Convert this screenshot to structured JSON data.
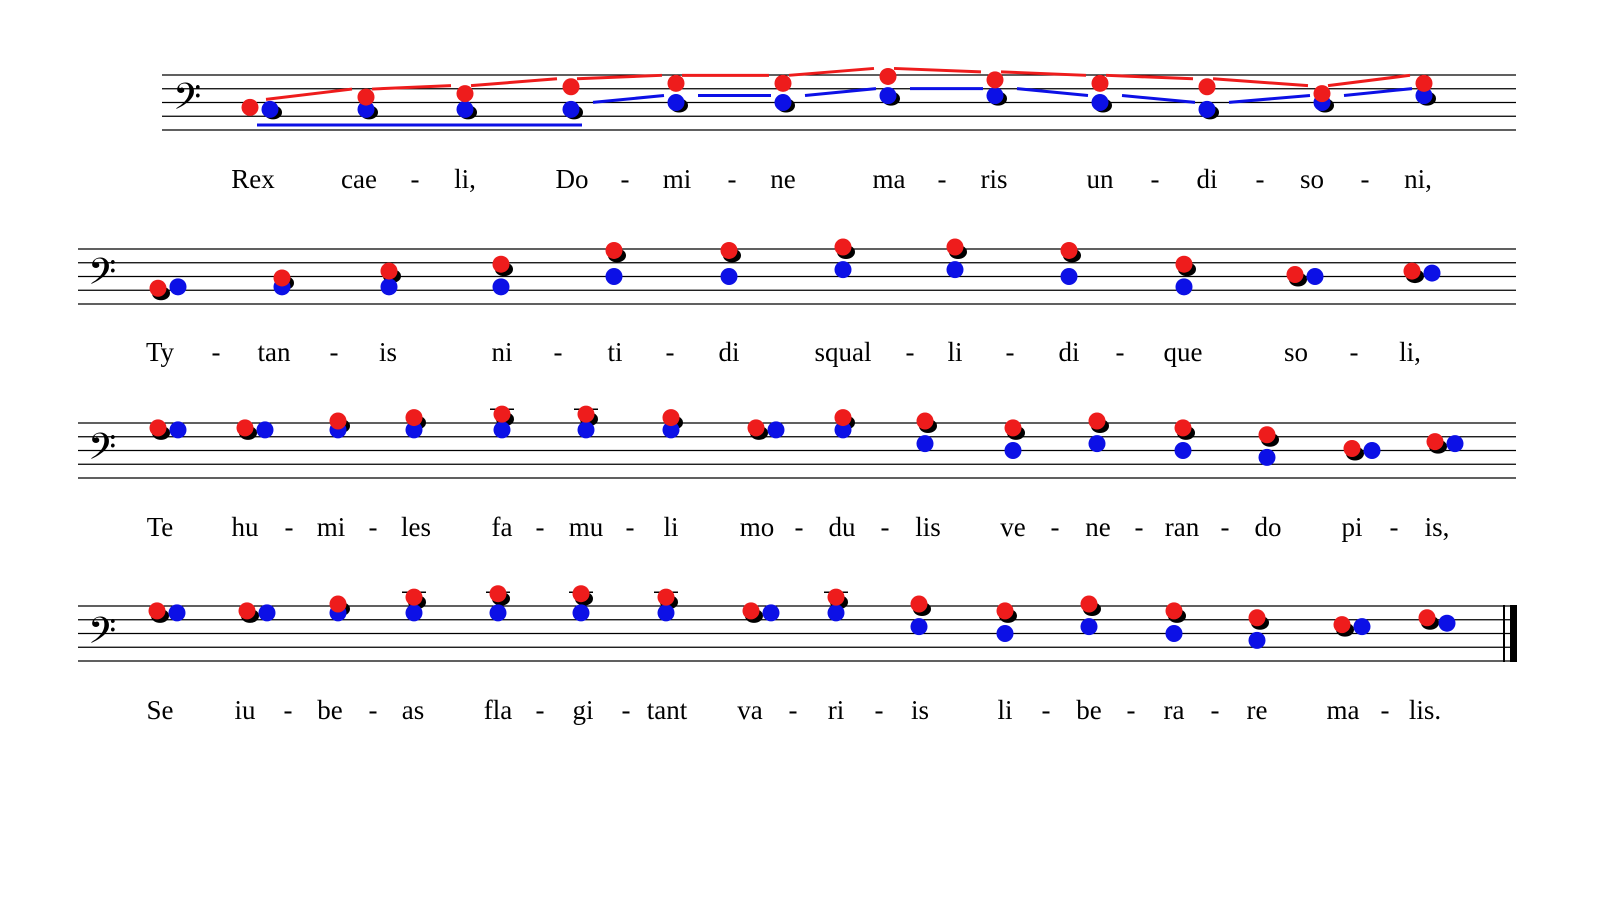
{
  "colors": {
    "red": "#ee1c1c",
    "blue": "#0c10e6",
    "black": "#000000",
    "staff": "#000000"
  },
  "clef_glyph": "𝄢",
  "clef_name": "bass-clef",
  "systems": [
    {
      "lyrics": [
        "Rex",
        "cae",
        "-",
        "li,",
        "Do",
        "-",
        "mi",
        "-",
        "ne",
        "ma",
        "-",
        "ris",
        "un",
        "-",
        "di",
        "-",
        "so",
        "-",
        "ni,"
      ],
      "red": [
        5,
        3.5,
        3,
        2,
        1.5,
        1.5,
        0.5,
        1,
        1.5,
        2,
        3,
        1.5
      ],
      "blue": [
        5,
        5,
        5,
        5,
        4,
        4,
        3,
        3,
        4,
        5,
        4,
        3
      ],
      "black_on": "blue"
    },
    {
      "lyrics": [
        "Ty",
        "-",
        "tan",
        "-",
        "is",
        "ni",
        "-",
        "ti",
        "-",
        "di",
        "squal",
        "-",
        "li",
        "-",
        "di",
        "-",
        "que",
        "so",
        "-",
        "li,"
      ],
      "red": [
        6,
        4.5,
        3.5,
        2.5,
        0.5,
        0.5,
        0,
        0,
        0.5,
        2.5,
        4,
        3.5
      ],
      "blue": [
        5.5,
        5.5,
        5.5,
        5.5,
        4,
        4,
        3,
        3,
        4,
        5.5,
        4,
        3.5
      ],
      "black_on": "red"
    },
    {
      "lyrics": [
        "Te",
        "hu",
        "-",
        "mi",
        "-",
        "les",
        "fa",
        "-",
        "mu",
        "-",
        "li",
        "mo",
        "-",
        "du",
        "-",
        "lis",
        "ve",
        "-",
        "ne",
        "-",
        "ran",
        "-",
        "do",
        "pi",
        "-",
        "is,"
      ],
      "red": [
        1,
        1,
        0,
        -0.5,
        -1,
        -1,
        -0.5,
        1,
        -0.5,
        0,
        1,
        0,
        1,
        2,
        4,
        3
      ],
      "blue": [
        1,
        1,
        1,
        1,
        1,
        1,
        1,
        1,
        1,
        3,
        4,
        3,
        4,
        5,
        4,
        3
      ],
      "black_on": "red"
    },
    {
      "lyrics": [
        "Se",
        "iu",
        "-",
        "be",
        "-",
        "as",
        "fla",
        "-",
        "gi",
        "-",
        "tant",
        "va",
        "-",
        "ri",
        "-",
        "is",
        "li",
        "-",
        "be",
        "-",
        "ra",
        "-",
        "re",
        "ma",
        "-",
        "lis."
      ],
      "red": [
        1,
        1,
        0,
        -1,
        -1.5,
        -1.5,
        -1,
        1,
        -1,
        0,
        1,
        0,
        1,
        2,
        3,
        2
      ],
      "blue": [
        1,
        1,
        1,
        1,
        1,
        1,
        1,
        1,
        1,
        3,
        4,
        3,
        4,
        5,
        3,
        2.5
      ],
      "black_on": "red"
    }
  ]
}
